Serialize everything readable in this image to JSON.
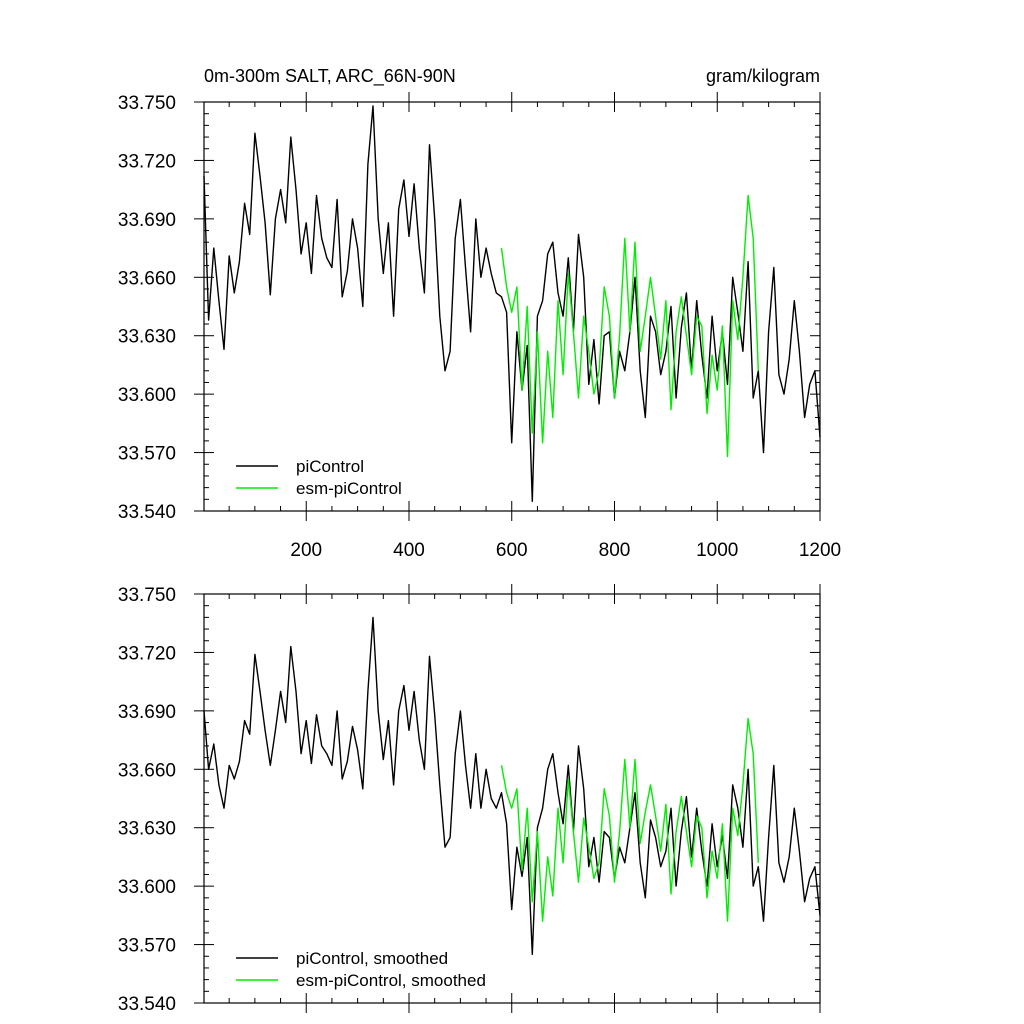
{
  "figure": {
    "title": "0m-300m SALT, ARC_66N-90N",
    "units": "gram/kilogram"
  },
  "colors": {
    "picontrol": "#000000",
    "esm_picontrol": "#00ee00",
    "axis": "#000000",
    "background": "#ffffff"
  },
  "chart_data": [
    {
      "type": "line",
      "title": "0m-300m SALT, ARC_66N-90N",
      "units": "gram/kilogram",
      "xlim": [
        1,
        1200
      ],
      "ylim": [
        33.54,
        33.75
      ],
      "yticks": [
        "33.540",
        "33.570",
        "33.600",
        "33.630",
        "33.660",
        "33.690",
        "33.720",
        "33.750"
      ],
      "xticks": [
        "200",
        "400",
        "600",
        "800",
        "1000",
        "1200"
      ],
      "show_xtick_labels": true,
      "legend_position": "bottom-left",
      "legend": [
        "piControl",
        "esm-piControl"
      ],
      "series": [
        {
          "name": "piControl",
          "color": "#000000",
          "x": [
            1,
            10,
            20,
            30,
            40,
            50,
            60,
            70,
            80,
            90,
            100,
            110,
            120,
            130,
            140,
            150,
            160,
            170,
            180,
            190,
            200,
            210,
            220,
            230,
            240,
            250,
            260,
            270,
            280,
            290,
            300,
            310,
            320,
            330,
            340,
            350,
            360,
            370,
            380,
            390,
            400,
            410,
            420,
            430,
            440,
            450,
            460,
            470,
            480,
            490,
            500,
            510,
            520,
            530,
            540,
            550,
            560,
            570,
            580,
            590,
            600,
            610,
            620,
            630,
            640,
            650,
            660,
            670,
            680,
            690,
            700,
            710,
            720,
            730,
            740,
            750,
            760,
            770,
            780,
            790,
            800,
            810,
            820,
            830,
            840,
            850,
            860,
            870,
            880,
            890,
            900,
            910,
            920,
            930,
            940,
            950,
            960,
            970,
            980,
            990,
            1000,
            1010,
            1020,
            1030,
            1040,
            1050,
            1060,
            1070,
            1080,
            1090,
            1100,
            1110,
            1120,
            1130,
            1140,
            1150,
            1160,
            1170,
            1180,
            1190,
            1200
          ],
          "y": [
            33.712,
            33.638,
            33.675,
            33.648,
            33.623,
            33.671,
            33.652,
            33.668,
            33.698,
            33.682,
            33.734,
            33.712,
            33.688,
            33.651,
            33.69,
            33.705,
            33.688,
            33.732,
            33.705,
            33.672,
            33.688,
            33.662,
            33.702,
            33.68,
            33.67,
            33.665,
            33.7,
            33.65,
            33.663,
            33.69,
            33.675,
            33.645,
            33.718,
            33.748,
            33.69,
            33.662,
            33.688,
            33.64,
            33.695,
            33.71,
            33.681,
            33.708,
            33.675,
            33.652,
            33.728,
            33.69,
            33.64,
            33.612,
            33.622,
            33.68,
            33.7,
            33.665,
            33.632,
            33.69,
            33.66,
            33.675,
            33.662,
            33.652,
            33.65,
            33.642,
            33.575,
            33.632,
            33.602,
            33.625,
            33.545,
            33.64,
            33.648,
            33.672,
            33.678,
            33.652,
            33.64,
            33.67,
            33.632,
            33.682,
            33.66,
            33.605,
            33.628,
            33.595,
            33.63,
            33.632,
            33.598,
            33.622,
            33.612,
            33.632,
            33.66,
            33.612,
            33.588,
            33.64,
            33.632,
            33.61,
            33.622,
            33.645,
            33.598,
            33.634,
            33.652,
            33.612,
            33.648,
            33.62,
            33.598,
            33.64,
            33.612,
            33.632,
            33.605,
            33.66,
            33.642,
            33.622,
            33.668,
            33.598,
            33.612,
            33.57,
            33.632,
            33.665,
            33.61,
            33.6,
            33.618,
            33.648,
            33.622,
            33.588,
            33.605,
            33.612,
            33.578
          ],
          "xlim_note": ""
        },
        {
          "name": "esm-piControl",
          "color": "#00ee00",
          "x": [
            580,
            590,
            600,
            610,
            620,
            630,
            640,
            650,
            660,
            670,
            680,
            690,
            700,
            710,
            720,
            730,
            740,
            750,
            760,
            770,
            780,
            790,
            800,
            810,
            820,
            830,
            840,
            850,
            860,
            870,
            880,
            890,
            900,
            910,
            920,
            930,
            940,
            950,
            960,
            970,
            980,
            990,
            1000,
            1010,
            1020,
            1030,
            1040,
            1050,
            1060,
            1070,
            1080
          ],
          "y": [
            33.675,
            33.655,
            33.642,
            33.655,
            33.602,
            33.645,
            33.58,
            33.632,
            33.575,
            33.622,
            33.588,
            33.648,
            33.61,
            33.662,
            33.632,
            33.598,
            33.64,
            33.622,
            33.6,
            33.612,
            33.655,
            33.64,
            33.598,
            33.63,
            33.68,
            33.632,
            33.678,
            33.622,
            33.64,
            33.66,
            33.64,
            33.618,
            33.648,
            33.592,
            33.632,
            33.65,
            33.63,
            33.61,
            33.64,
            33.635,
            33.59,
            33.62,
            33.602,
            33.635,
            33.568,
            33.648,
            33.628,
            33.66,
            33.702,
            33.68,
            33.612
          ]
        }
      ]
    },
    {
      "type": "line",
      "title": "",
      "xlim": [
        1,
        1200
      ],
      "ylim": [
        33.54,
        33.75
      ],
      "yticks": [
        "33.540",
        "33.570",
        "33.600",
        "33.630",
        "33.660",
        "33.690",
        "33.720",
        "33.750"
      ],
      "xticks": [
        "200",
        "400",
        "600",
        "800",
        "1000",
        "1200"
      ],
      "show_xtick_labels": false,
      "legend_position": "bottom-left",
      "legend": [
        "piControl, smoothed",
        "esm-piControl, smoothed"
      ],
      "series": [
        {
          "name": "piControl, smoothed",
          "color": "#000000",
          "x": [
            1,
            10,
            20,
            30,
            40,
            50,
            60,
            70,
            80,
            90,
            100,
            110,
            120,
            130,
            140,
            150,
            160,
            170,
            180,
            190,
            200,
            210,
            220,
            230,
            240,
            250,
            260,
            270,
            280,
            290,
            300,
            310,
            320,
            330,
            340,
            350,
            360,
            370,
            380,
            390,
            400,
            410,
            420,
            430,
            440,
            450,
            460,
            470,
            480,
            490,
            500,
            510,
            520,
            530,
            540,
            550,
            560,
            570,
            580,
            590,
            600,
            610,
            620,
            630,
            640,
            650,
            660,
            670,
            680,
            690,
            700,
            710,
            720,
            730,
            740,
            750,
            760,
            770,
            780,
            790,
            800,
            810,
            820,
            830,
            840,
            850,
            860,
            870,
            880,
            890,
            900,
            910,
            920,
            930,
            940,
            950,
            960,
            970,
            980,
            990,
            1000,
            1010,
            1020,
            1030,
            1040,
            1050,
            1060,
            1070,
            1080,
            1090,
            1100,
            1110,
            1120,
            1130,
            1140,
            1150,
            1160,
            1170,
            1180,
            1190,
            1200
          ],
          "y": [
            33.69,
            33.66,
            33.673,
            33.652,
            33.64,
            33.662,
            33.655,
            33.664,
            33.685,
            33.678,
            33.719,
            33.7,
            33.68,
            33.662,
            33.68,
            33.7,
            33.684,
            33.723,
            33.7,
            33.668,
            33.685,
            33.663,
            33.688,
            33.672,
            33.668,
            33.662,
            33.69,
            33.655,
            33.664,
            33.682,
            33.67,
            33.65,
            33.7,
            33.738,
            33.69,
            33.665,
            33.685,
            33.652,
            33.69,
            33.703,
            33.68,
            33.7,
            33.675,
            33.66,
            33.718,
            33.688,
            33.652,
            33.62,
            33.625,
            33.668,
            33.69,
            33.662,
            33.64,
            33.668,
            33.64,
            33.66,
            33.645,
            33.64,
            33.648,
            33.632,
            33.588,
            33.62,
            33.605,
            33.625,
            33.565,
            33.63,
            33.64,
            33.66,
            33.668,
            33.648,
            33.632,
            33.662,
            33.628,
            33.672,
            33.65,
            33.61,
            33.625,
            33.602,
            33.628,
            33.625,
            33.604,
            33.62,
            33.612,
            33.63,
            33.648,
            33.612,
            33.594,
            33.634,
            33.625,
            33.61,
            33.618,
            33.64,
            33.6,
            33.628,
            33.646,
            33.615,
            33.64,
            33.618,
            33.6,
            33.632,
            33.61,
            33.626,
            33.604,
            33.652,
            33.64,
            33.62,
            33.66,
            33.6,
            33.61,
            33.582,
            33.625,
            33.662,
            33.612,
            33.602,
            33.615,
            33.64,
            33.618,
            33.592,
            33.604,
            33.61,
            33.585
          ]
        },
        {
          "name": "esm-piControl, smoothed",
          "color": "#00ee00",
          "x": [
            580,
            590,
            600,
            610,
            620,
            630,
            640,
            650,
            660,
            670,
            680,
            690,
            700,
            710,
            720,
            730,
            740,
            750,
            760,
            770,
            780,
            790,
            800,
            810,
            820,
            830,
            840,
            850,
            860,
            870,
            880,
            890,
            900,
            910,
            920,
            930,
            940,
            950,
            960,
            970,
            980,
            990,
            1000,
            1010,
            1020,
            1030,
            1040,
            1050,
            1060,
            1070,
            1080
          ],
          "y": [
            33.662,
            33.648,
            33.64,
            33.65,
            33.608,
            33.64,
            33.592,
            33.628,
            33.582,
            33.615,
            33.595,
            33.64,
            33.612,
            33.655,
            33.628,
            33.602,
            33.635,
            33.62,
            33.604,
            33.612,
            33.65,
            33.636,
            33.602,
            33.628,
            33.665,
            33.63,
            33.665,
            33.622,
            33.638,
            33.652,
            33.636,
            33.618,
            33.642,
            33.596,
            33.628,
            33.646,
            33.628,
            33.61,
            33.636,
            33.63,
            33.594,
            33.618,
            33.604,
            33.632,
            33.582,
            33.64,
            33.626,
            33.652,
            33.686,
            33.668,
            33.612
          ]
        }
      ]
    }
  ]
}
